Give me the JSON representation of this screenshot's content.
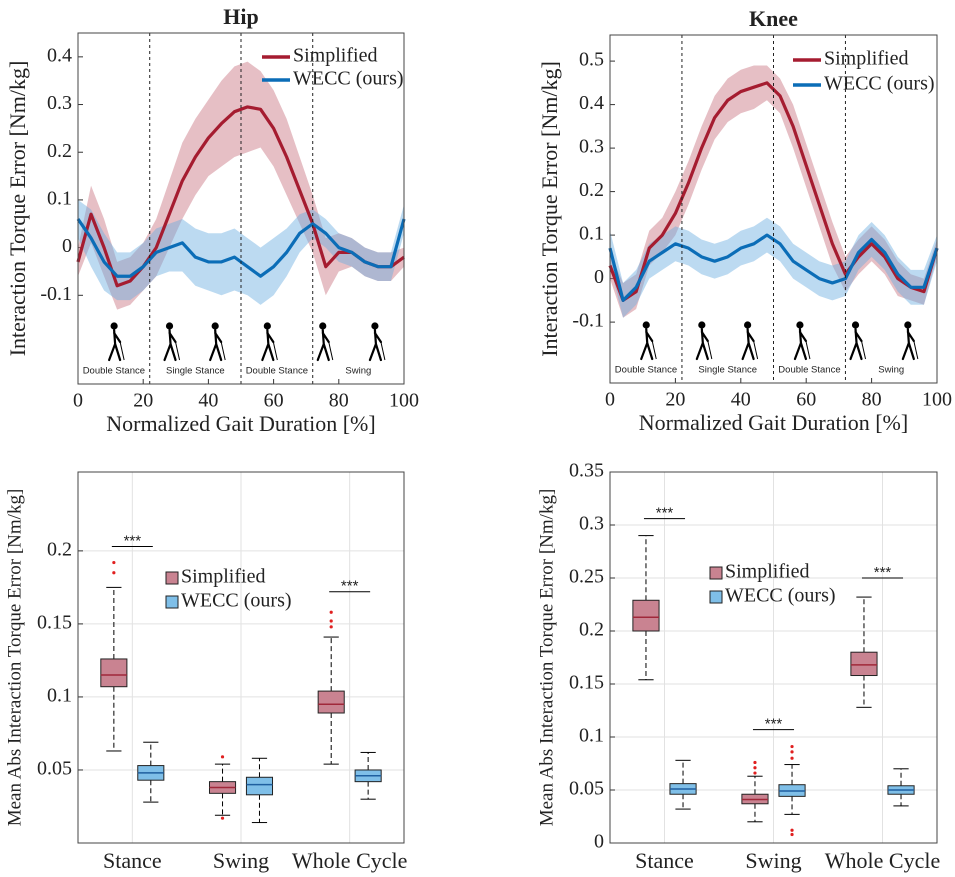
{
  "chart_data": [
    {
      "type": "line",
      "title": "Hip",
      "xlabel": "Normalized Gait Duration [%]",
      "ylabel": "Interaction Torque Error [Nm/kg]",
      "x": [
        0,
        4,
        8,
        12,
        16,
        20,
        24,
        28,
        32,
        36,
        40,
        44,
        48,
        52,
        56,
        60,
        64,
        68,
        72,
        76,
        80,
        84,
        88,
        92,
        96,
        100
      ],
      "xlim": [
        0,
        100
      ],
      "xticks": [
        0,
        20,
        40,
        60,
        80,
        100
      ],
      "ylim": [
        -0.286,
        0.45
      ],
      "yticks": [
        -0.1,
        0,
        0.1,
        0.2,
        0.3,
        0.4
      ],
      "grid": false,
      "legend": "upper right",
      "phase_boundaries": [
        22,
        50,
        72
      ],
      "phases": [
        "Double Stance",
        "Single Stance",
        "Double Stance",
        "Swing"
      ],
      "series": [
        {
          "name": "Simplified",
          "color": "#a51c30",
          "band_color": "#c8707e",
          "values": [
            -0.03,
            0.07,
            0.0,
            -0.08,
            -0.07,
            -0.04,
            0.0,
            0.07,
            0.14,
            0.19,
            0.23,
            0.26,
            0.285,
            0.295,
            0.29,
            0.25,
            0.19,
            0.12,
            0.05,
            -0.04,
            -0.01,
            -0.01,
            -0.03,
            -0.04,
            -0.04,
            -0.02
          ],
          "upper": [
            0.0,
            0.13,
            0.06,
            -0.03,
            -0.02,
            0.01,
            0.06,
            0.14,
            0.22,
            0.27,
            0.31,
            0.35,
            0.38,
            0.39,
            0.37,
            0.33,
            0.27,
            0.19,
            0.11,
            0.02,
            0.03,
            0.02,
            0.0,
            -0.01,
            -0.01,
            0.0
          ],
          "lower": [
            -0.06,
            0.01,
            -0.06,
            -0.13,
            -0.12,
            -0.09,
            -0.06,
            0.0,
            0.06,
            0.11,
            0.15,
            0.17,
            0.19,
            0.2,
            0.21,
            0.17,
            0.11,
            0.05,
            -0.01,
            -0.1,
            -0.05,
            -0.04,
            -0.06,
            -0.07,
            -0.07,
            -0.04
          ]
        },
        {
          "name": "WECC (ours)",
          "color": "#0b6db7",
          "band_color": "#6aaee0",
          "values": [
            0.06,
            0.02,
            -0.03,
            -0.06,
            -0.06,
            -0.04,
            -0.01,
            0.0,
            0.01,
            -0.02,
            -0.03,
            -0.03,
            -0.02,
            -0.04,
            -0.06,
            -0.04,
            -0.01,
            0.03,
            0.05,
            0.03,
            0.0,
            -0.01,
            -0.03,
            -0.04,
            -0.04,
            0.06
          ],
          "upper": [
            0.1,
            0.08,
            0.03,
            -0.01,
            -0.01,
            0.01,
            0.04,
            0.05,
            0.06,
            0.04,
            0.03,
            0.03,
            0.04,
            0.02,
            0.0,
            0.02,
            0.04,
            0.07,
            0.08,
            0.06,
            0.03,
            0.02,
            0.0,
            -0.01,
            -0.01,
            0.09
          ],
          "lower": [
            0.02,
            -0.04,
            -0.09,
            -0.11,
            -0.11,
            -0.09,
            -0.06,
            -0.05,
            -0.05,
            -0.08,
            -0.09,
            -0.1,
            -0.09,
            -0.1,
            -0.12,
            -0.1,
            -0.06,
            -0.01,
            0.02,
            0.0,
            -0.03,
            -0.04,
            -0.06,
            -0.07,
            -0.07,
            0.03
          ]
        }
      ]
    },
    {
      "type": "line",
      "title": "Knee",
      "xlabel": "Normalized Gait Duration [%]",
      "ylabel": "Interaction Torque Error [Nm/kg]",
      "x": [
        0,
        4,
        8,
        12,
        16,
        20,
        24,
        28,
        32,
        36,
        40,
        44,
        48,
        52,
        56,
        60,
        64,
        68,
        72,
        76,
        80,
        84,
        88,
        92,
        96,
        100
      ],
      "xlim": [
        0,
        100
      ],
      "xticks": [
        0,
        20,
        40,
        60,
        80,
        100
      ],
      "ylim": [
        -0.24,
        0.56
      ],
      "yticks": [
        -0.1,
        0,
        0.1,
        0.2,
        0.3,
        0.4,
        0.5
      ],
      "grid": false,
      "legend": "upper right",
      "phase_boundaries": [
        22,
        50,
        72
      ],
      "phases": [
        "Double Stance",
        "Single Stance",
        "Double Stance",
        "Swing"
      ],
      "series": [
        {
          "name": "Simplified",
          "color": "#a51c30",
          "band_color": "#c8707e",
          "values": [
            0.03,
            -0.05,
            -0.03,
            0.07,
            0.1,
            0.15,
            0.22,
            0.3,
            0.37,
            0.41,
            0.43,
            0.44,
            0.45,
            0.42,
            0.35,
            0.26,
            0.17,
            0.08,
            0.01,
            0.05,
            0.08,
            0.05,
            0.0,
            -0.02,
            -0.03,
            0.07
          ],
          "upper": [
            0.06,
            -0.01,
            0.01,
            0.11,
            0.14,
            0.2,
            0.27,
            0.35,
            0.42,
            0.46,
            0.48,
            0.49,
            0.49,
            0.46,
            0.4,
            0.31,
            0.22,
            0.13,
            0.05,
            0.09,
            0.12,
            0.09,
            0.04,
            0.01,
            0.0,
            0.09
          ],
          "lower": [
            0.0,
            -0.09,
            -0.07,
            0.03,
            0.06,
            0.1,
            0.17,
            0.25,
            0.32,
            0.36,
            0.38,
            0.39,
            0.41,
            0.38,
            0.3,
            0.21,
            0.12,
            0.03,
            -0.03,
            0.01,
            0.04,
            0.01,
            -0.04,
            -0.05,
            -0.06,
            0.05
          ]
        },
        {
          "name": "WECC (ours)",
          "color": "#0b6db7",
          "band_color": "#6aaee0",
          "values": [
            0.07,
            -0.05,
            -0.02,
            0.04,
            0.06,
            0.08,
            0.07,
            0.05,
            0.04,
            0.05,
            0.07,
            0.08,
            0.1,
            0.08,
            0.04,
            0.02,
            0.0,
            -0.01,
            0.0,
            0.06,
            0.09,
            0.06,
            0.01,
            -0.02,
            -0.02,
            0.07
          ],
          "upper": [
            0.11,
            -0.01,
            0.02,
            0.08,
            0.1,
            0.12,
            0.11,
            0.09,
            0.08,
            0.09,
            0.11,
            0.12,
            0.14,
            0.12,
            0.08,
            0.06,
            0.04,
            0.03,
            0.04,
            0.1,
            0.13,
            0.1,
            0.05,
            0.02,
            0.02,
            0.1
          ],
          "lower": [
            0.03,
            -0.09,
            -0.06,
            0.0,
            0.02,
            0.04,
            0.03,
            0.01,
            0.0,
            0.01,
            0.03,
            0.04,
            0.06,
            0.04,
            0.0,
            -0.02,
            -0.04,
            -0.05,
            -0.04,
            0.02,
            0.05,
            0.02,
            -0.03,
            -0.06,
            -0.06,
            0.04
          ]
        }
      ]
    },
    {
      "type": "box",
      "ylabel": "Mean Abs Interaction Torque Error [Nm/kg]",
      "categories": [
        "Stance",
        "Swing",
        "Whole Cycle"
      ],
      "ylim": [
        0,
        0.254
      ],
      "yticks": [
        0.05,
        0.1,
        0.15,
        0.2
      ],
      "grid": true,
      "legend": "upper right",
      "series": [
        {
          "name": "Simplified",
          "color": "#c98391",
          "median_color": "#a0283a",
          "boxes": [
            {
              "low": 0.063,
              "q1": 0.107,
              "median": 0.115,
              "q3": 0.126,
              "high": 0.175,
              "outliers": [
                0.185,
                0.192
              ]
            },
            {
              "low": 0.019,
              "q1": 0.034,
              "median": 0.038,
              "q3": 0.042,
              "high": 0.054,
              "outliers": [
                0.059,
                0.017
              ]
            },
            {
              "low": 0.054,
              "q1": 0.089,
              "median": 0.095,
              "q3": 0.104,
              "high": 0.141,
              "outliers": [
                0.148,
                0.152,
                0.158
              ]
            }
          ]
        },
        {
          "name": "WECC (ours)",
          "color": "#7fbfe8",
          "median_color": "#1f5f9f",
          "boxes": [
            {
              "low": 0.028,
              "q1": 0.043,
              "median": 0.048,
              "q3": 0.053,
              "high": 0.069,
              "outliers": []
            },
            {
              "low": 0.014,
              "q1": 0.033,
              "median": 0.04,
              "q3": 0.045,
              "high": 0.058,
              "outliers": []
            },
            {
              "low": 0.03,
              "q1": 0.042,
              "median": 0.046,
              "q3": 0.05,
              "high": 0.062,
              "outliers": []
            }
          ]
        }
      ],
      "significance": [
        {
          "text": "***",
          "value": 0.203
        },
        null,
        {
          "text": "***",
          "value": 0.172
        }
      ]
    },
    {
      "type": "box",
      "ylabel": "Mean Abs Interaction Torque Error [Nm/kg]",
      "categories": [
        "Stance",
        "Swing",
        "Whole Cycle"
      ],
      "ylim": [
        0,
        0.35
      ],
      "yticks": [
        0,
        0.05,
        0.1,
        0.15,
        0.2,
        0.25,
        0.3,
        0.35
      ],
      "grid": true,
      "legend": "upper right",
      "series": [
        {
          "name": "Simplified",
          "color": "#c98391",
          "median_color": "#a0283a",
          "boxes": [
            {
              "low": 0.154,
              "q1": 0.2,
              "median": 0.213,
              "q3": 0.229,
              "high": 0.29,
              "outliers": []
            },
            {
              "low": 0.02,
              "q1": 0.037,
              "median": 0.041,
              "q3": 0.046,
              "high": 0.063,
              "outliers": [
                0.066,
                0.071,
                0.076
              ]
            },
            {
              "low": 0.128,
              "q1": 0.158,
              "median": 0.168,
              "q3": 0.18,
              "high": 0.232,
              "outliers": []
            }
          ]
        },
        {
          "name": "WECC (ours)",
          "color": "#7fbfe8",
          "median_color": "#1f5f9f",
          "boxes": [
            {
              "low": 0.032,
              "q1": 0.046,
              "median": 0.051,
              "q3": 0.056,
              "high": 0.078,
              "outliers": []
            },
            {
              "low": 0.027,
              "q1": 0.044,
              "median": 0.049,
              "q3": 0.055,
              "high": 0.074,
              "outliers": [
                0.08,
                0.086,
                0.091,
                0.012,
                0.008
              ]
            },
            {
              "low": 0.035,
              "q1": 0.046,
              "median": 0.05,
              "q3": 0.054,
              "high": 0.07,
              "outliers": []
            }
          ]
        }
      ],
      "significance": [
        {
          "text": "***",
          "value": 0.306
        },
        {
          "text": "***",
          "value": 0.107
        },
        {
          "text": "***",
          "value": 0.25
        }
      ]
    }
  ]
}
